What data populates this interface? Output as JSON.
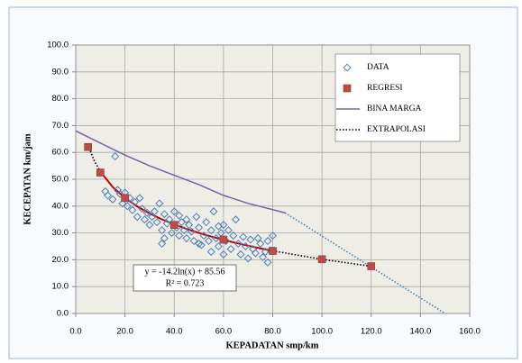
{
  "chart_data": {
    "type": "scatter",
    "xlabel": "KEPADATAN smp/km",
    "ylabel": "KECEPATAN km/jam",
    "xlim": [
      0,
      160
    ],
    "ylim": [
      0,
      100
    ],
    "xticks": [
      {
        "value": 0,
        "label": "0.0"
      },
      {
        "value": 20,
        "label": "20.0"
      },
      {
        "value": 40,
        "label": "40.0"
      },
      {
        "value": 60,
        "label": "60.0"
      },
      {
        "value": 80,
        "label": "80.0"
      },
      {
        "value": 100,
        "label": "100.0"
      },
      {
        "value": 120,
        "label": "120.0"
      },
      {
        "value": 140,
        "label": "140.0"
      },
      {
        "value": 160,
        "label": "160.0"
      }
    ],
    "yticks": [
      {
        "value": 0,
        "label": "0.0"
      },
      {
        "value": 10,
        "label": "10.0"
      },
      {
        "value": 20,
        "label": "20.0"
      },
      {
        "value": 30,
        "label": "30.0"
      },
      {
        "value": 40,
        "label": "40.0"
      },
      {
        "value": 50,
        "label": "50.0"
      },
      {
        "value": 60,
        "label": "60.0"
      },
      {
        "value": 70,
        "label": "70.0"
      },
      {
        "value": 80,
        "label": "80.0"
      },
      {
        "value": 90,
        "label": "90.0"
      },
      {
        "value": 100,
        "label": "100.0"
      }
    ],
    "grid": true,
    "legend": "upper right",
    "annotations": [
      "y = -14.2ln(x) + 85.56",
      "R² = 0.723"
    ],
    "series": [
      {
        "name": "DATA",
        "mode": "markers",
        "marker": "diamond",
        "color": "#4a7ebb",
        "x": [
          12,
          13,
          15,
          16,
          17,
          18,
          19,
          20,
          21,
          22,
          23,
          24,
          25,
          26,
          27,
          28,
          29,
          30,
          31,
          32,
          33,
          34,
          35,
          35,
          36,
          37,
          38,
          39,
          40,
          41,
          42,
          43,
          44,
          45,
          45,
          46,
          47,
          48,
          49,
          50,
          51,
          52,
          53,
          54,
          55,
          55,
          56,
          57,
          58,
          59,
          60,
          60,
          61,
          62,
          63,
          64,
          65,
          66,
          67,
          68,
          69,
          70,
          71,
          72,
          73,
          74,
          75,
          76,
          77,
          78,
          78,
          80,
          79,
          36,
          42,
          50,
          58
        ],
        "values": [
          45.5,
          44,
          42.5,
          58.5,
          46,
          44.5,
          41,
          45,
          40,
          43,
          38.5,
          41.5,
          36,
          43,
          39,
          35,
          37.5,
          33,
          36,
          38,
          34,
          41,
          31,
          26,
          37,
          33.5,
          35,
          30,
          38,
          32,
          29,
          34,
          31,
          28,
          35,
          33,
          30.5,
          27,
          36,
          32,
          25.5,
          29,
          34,
          27,
          31,
          23,
          38,
          28,
          25,
          30,
          33,
          22,
          27,
          31,
          24,
          29,
          35,
          26,
          22,
          28.5,
          25,
          20.5,
          27.5,
          24,
          22.5,
          28,
          26,
          21,
          23,
          19,
          27,
          29,
          23.5,
          28,
          36.5,
          26,
          32.5
        ]
      },
      {
        "name": "REGRESI",
        "mode": "markers",
        "marker": "square",
        "color": "#be4b48",
        "x": [
          5,
          10,
          20,
          40,
          60,
          80,
          100,
          120
        ],
        "values": [
          62,
          52.5,
          43,
          33,
          27.5,
          23.3,
          20.2,
          17.6
        ]
      },
      {
        "name": "BINA MARGA",
        "mode": "line",
        "color": "#7b5fa8",
        "x": [
          0,
          10,
          20,
          30,
          40,
          50,
          60,
          70,
          85
        ],
        "values": [
          68,
          63.5,
          59,
          55,
          51.5,
          48,
          44,
          41,
          37.5
        ]
      },
      {
        "name": "EXTRAPOLASI",
        "mode": "dotted",
        "color": "#000000",
        "x": [
          5,
          7.5,
          10,
          null,
          80,
          100,
          120
        ],
        "values": [
          62.71,
          56.95,
          52.86,
          null,
          23.33,
          20.17,
          17.58
        ]
      },
      {
        "mode": "line",
        "color": "#c00000",
        "x": [
          10,
          15,
          20,
          25,
          30,
          35,
          40,
          45,
          50,
          55,
          60,
          65,
          70,
          75,
          80
        ],
        "values": [
          52.86,
          47.11,
          43.03,
          39.85,
          37.26,
          35.07,
          33.18,
          31.5,
          30.01,
          28.66,
          27.42,
          26.28,
          25.23,
          24.25,
          23.33
        ]
      },
      {
        "mode": "dotted",
        "color": "#4a7ebb",
        "x": [
          85,
          150
        ],
        "values": [
          37.5,
          0
        ]
      }
    ]
  }
}
